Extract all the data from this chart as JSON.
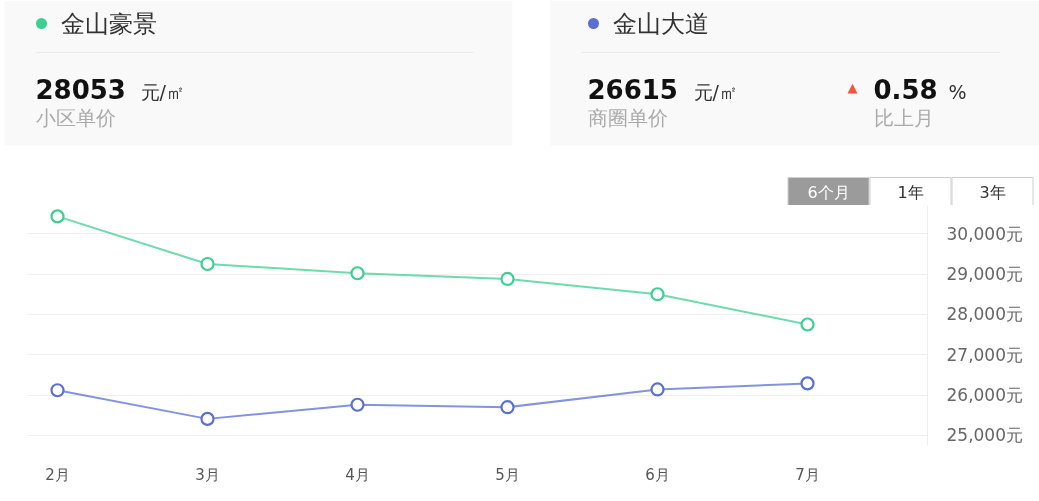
{
  "chart_data": {
    "type": "line",
    "categories": [
      "2月",
      "3月",
      "4月",
      "5月",
      "6月",
      "7月"
    ],
    "series": [
      {
        "name": "金山豪景",
        "color": "#3ccf91",
        "values": [
          30430,
          29250,
          29020,
          28880,
          28500,
          27750
        ]
      },
      {
        "name": "金山大道",
        "color": "#5b6fd3",
        "values": [
          26120,
          25410,
          25760,
          25700,
          26140,
          26290
        ]
      }
    ],
    "ylim": [
      24750,
      30700
    ],
    "yticks": [
      {
        "value": 25000,
        "label": "25,000元"
      },
      {
        "value": 26000,
        "label": "26,000元"
      },
      {
        "value": 27000,
        "label": "27,000元"
      },
      {
        "value": 28000,
        "label": "28,000元"
      },
      {
        "value": 29000,
        "label": "29,000元"
      },
      {
        "value": 30000,
        "label": "30,000元"
      }
    ],
    "grid": "y",
    "legend": "top",
    "marker": "circle",
    "line_style": "solid",
    "annotations": [
      "28053",
      "元/㎡",
      "小区单价",
      "26615",
      "元/㎡",
      "商圈单价",
      "▲",
      "0.58",
      "%",
      "比上月",
      "6个月",
      "1年",
      "3年"
    ]
  }
}
